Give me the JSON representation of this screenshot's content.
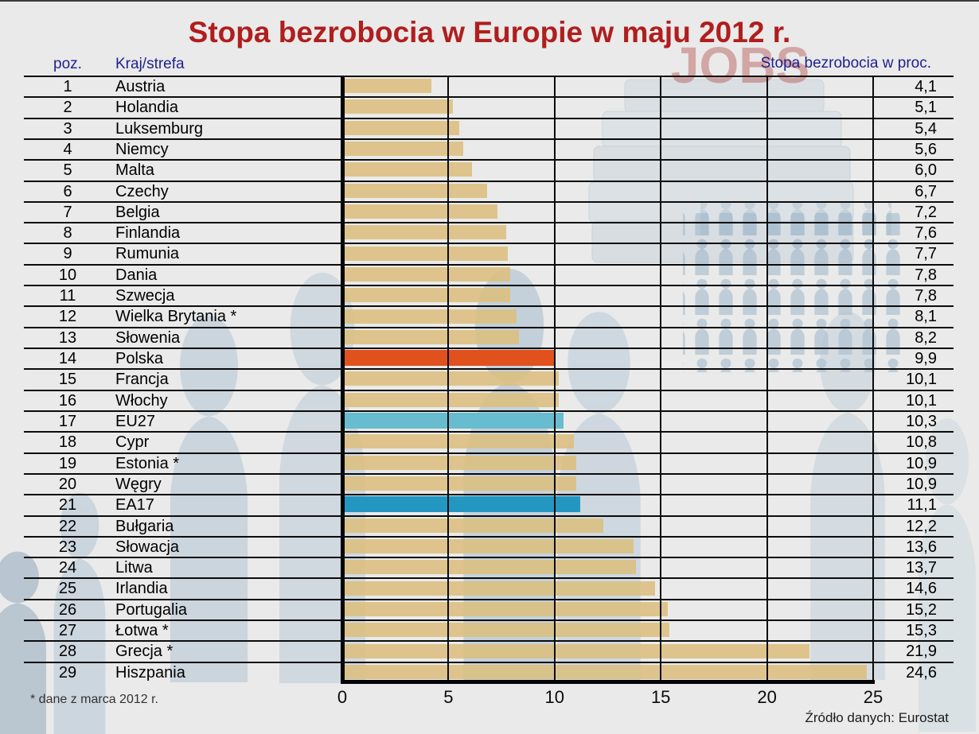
{
  "title": "Stopa bezrobocia w Europie w maju 2012 r.",
  "table": {
    "headers": {
      "poz": "poz.",
      "country": "Kraj/strefa",
      "rate": "Stopa bezrobocia w proc."
    }
  },
  "watermark": {
    "text": "JOBS"
  },
  "footnote": "* dane z marca 2012 r.",
  "source": "Źródło danych: Eurostat",
  "colors": {
    "background": "#e9eae9",
    "title_text": "#b01e1e",
    "header_text": "#1f1f8f",
    "bar_default": "rgba(220,190,126,0.88)",
    "bar_poland": "#e0511e",
    "bar_eu27": "#68bcd0",
    "bar_ea17": "#2397c2",
    "grid_line": "#0b0b0b"
  },
  "chart_data": {
    "type": "bar",
    "orientation": "horizontal",
    "title": "Stopa bezrobocia w Europie w maju 2012 r.",
    "value_label": "Stopa bezrobocia w proc.",
    "xlim": [
      0,
      25
    ],
    "xticks": [
      0,
      5,
      10,
      15,
      20,
      25
    ],
    "grid": true,
    "rows": [
      {
        "poz": 1,
        "label": "Austria",
        "value": 4.1,
        "display": "4,1",
        "highlight": null
      },
      {
        "poz": 2,
        "label": "Holandia",
        "value": 5.1,
        "display": "5,1",
        "highlight": null
      },
      {
        "poz": 3,
        "label": "Luksemburg",
        "value": 5.4,
        "display": "5,4",
        "highlight": null
      },
      {
        "poz": 4,
        "label": "Niemcy",
        "value": 5.6,
        "display": "5,6",
        "highlight": null
      },
      {
        "poz": 5,
        "label": "Malta",
        "value": 6.0,
        "display": "6,0",
        "highlight": null
      },
      {
        "poz": 6,
        "label": "Czechy",
        "value": 6.7,
        "display": "6,7",
        "highlight": null
      },
      {
        "poz": 7,
        "label": "Belgia",
        "value": 7.2,
        "display": "7,2",
        "highlight": null
      },
      {
        "poz": 8,
        "label": "Finlandia",
        "value": 7.6,
        "display": "7,6",
        "highlight": null
      },
      {
        "poz": 9,
        "label": "Rumunia",
        "value": 7.7,
        "display": "7,7",
        "highlight": null
      },
      {
        "poz": 10,
        "label": "Dania",
        "value": 7.8,
        "display": "7,8",
        "highlight": null
      },
      {
        "poz": 11,
        "label": "Szwecja",
        "value": 7.8,
        "display": "7,8",
        "highlight": null
      },
      {
        "poz": 12,
        "label": "Wielka Brytania *",
        "value": 8.1,
        "display": "8,1",
        "highlight": null
      },
      {
        "poz": 13,
        "label": "Słowenia",
        "value": 8.2,
        "display": "8,2",
        "highlight": null
      },
      {
        "poz": 14,
        "label": "Polska",
        "value": 9.9,
        "display": "9,9",
        "highlight": "poland"
      },
      {
        "poz": 15,
        "label": "Francja",
        "value": 10.1,
        "display": "10,1",
        "highlight": null
      },
      {
        "poz": 16,
        "label": "Włochy",
        "value": 10.1,
        "display": "10,1",
        "highlight": null
      },
      {
        "poz": 17,
        "label": "EU27",
        "value": 10.3,
        "display": "10,3",
        "highlight": "eu27"
      },
      {
        "poz": 18,
        "label": "Cypr",
        "value": 10.8,
        "display": "10,8",
        "highlight": null
      },
      {
        "poz": 19,
        "label": "Estonia *",
        "value": 10.9,
        "display": "10,9",
        "highlight": null
      },
      {
        "poz": 20,
        "label": "Węgry",
        "value": 10.9,
        "display": "10,9",
        "highlight": null
      },
      {
        "poz": 21,
        "label": "EA17",
        "value": 11.1,
        "display": "11,1",
        "highlight": "ea17"
      },
      {
        "poz": 22,
        "label": "Bułgaria",
        "value": 12.2,
        "display": "12,2",
        "highlight": null
      },
      {
        "poz": 23,
        "label": "Słowacja",
        "value": 13.6,
        "display": "13,6",
        "highlight": null
      },
      {
        "poz": 24,
        "label": "Litwa",
        "value": 13.7,
        "display": "13,7",
        "highlight": null
      },
      {
        "poz": 25,
        "label": "Irlandia",
        "value": 14.6,
        "display": "14,6",
        "highlight": null
      },
      {
        "poz": 26,
        "label": "Portugalia",
        "value": 15.2,
        "display": "15,2",
        "highlight": null
      },
      {
        "poz": 27,
        "label": "Łotwa *",
        "value": 15.3,
        "display": "15,3",
        "highlight": null
      },
      {
        "poz": 28,
        "label": "Grecja *",
        "value": 21.9,
        "display": "21,9",
        "highlight": null
      },
      {
        "poz": 29,
        "label": "Hiszpania",
        "value": 24.6,
        "display": "24,6",
        "highlight": null
      }
    ],
    "footnote": "* dane z marca 2012 r.",
    "source": "Źródło danych: Eurostat"
  }
}
